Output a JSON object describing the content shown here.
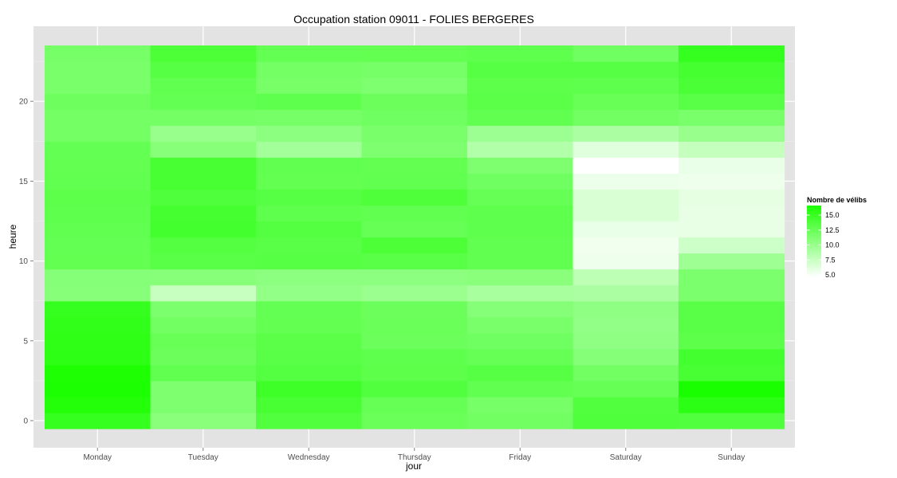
{
  "chart_data": {
    "type": "heatmap",
    "title": "Occupation station 09011 - FOLIES BERGERES",
    "xlabel": "jour",
    "ylabel": "heure",
    "x_categories": [
      "Monday",
      "Tuesday",
      "Wednesday",
      "Thursday",
      "Friday",
      "Saturday",
      "Sunday"
    ],
    "y_ticks": [
      0,
      5,
      10,
      15,
      20
    ],
    "y_range": [
      -0.5,
      23.5
    ],
    "grid": true,
    "legend": {
      "title": "Nombre de vélibs",
      "position": "right",
      "range": [
        4.6,
        16.6
      ],
      "ticks": [
        15.0,
        12.5,
        10.0,
        7.5,
        5.0
      ],
      "tick_labels": [
        "15.0",
        "12.5",
        "10.0",
        "7.5",
        "5.0"
      ],
      "low_color": "#ffffff",
      "high_color": "#1aff00"
    },
    "values": {
      "Monday": [
        15.2,
        16.2,
        16.5,
        16.4,
        15.6,
        15.5,
        15.4,
        15.2,
        10.9,
        11.0,
        12.8,
        12.7,
        12.9,
        13.0,
        13.1,
        12.9,
        12.8,
        12.7,
        11.9,
        11.9,
        12.2,
        11.6,
        11.6,
        11.8
      ],
      "Tuesday": [
        10.8,
        11.4,
        11.4,
        12.9,
        12.3,
        12.5,
        12.0,
        11.5,
        7.6,
        10.9,
        13.3,
        13.6,
        14.5,
        14.3,
        13.8,
        14.2,
        14.2,
        10.9,
        10.0,
        11.9,
        12.7,
        12.9,
        13.4,
        14.0
      ],
      "Wednesday": [
        13.7,
        14.2,
        14.7,
        13.6,
        13.3,
        13.2,
        12.8,
        12.7,
        10.3,
        10.6,
        13.4,
        13.3,
        13.6,
        13.0,
        13.4,
        12.8,
        12.9,
        9.4,
        10.6,
        11.8,
        13.0,
        11.7,
        11.9,
        12.7
      ],
      "Thursday": [
        12.4,
        12.6,
        13.7,
        13.1,
        13.0,
        12.3,
        12.4,
        12.3,
        9.9,
        10.6,
        13.3,
        14.0,
        12.6,
        12.9,
        13.9,
        12.9,
        12.8,
        11.4,
        11.6,
        12.1,
        12.3,
        11.4,
        11.8,
        12.8
      ],
      "Friday": [
        12.0,
        11.8,
        12.9,
        13.4,
        12.6,
        12.1,
        11.6,
        11.0,
        9.2,
        10.8,
        12.9,
        12.9,
        13.0,
        13.0,
        12.6,
        12.1,
        11.4,
        8.7,
        9.8,
        12.9,
        13.2,
        13.1,
        13.4,
        13.0
      ],
      "Saturday": [
        13.8,
        13.7,
        12.6,
        12.0,
        11.0,
        10.5,
        10.3,
        10.5,
        9.0,
        8.1,
        5.5,
        5.4,
        5.7,
        6.6,
        6.6,
        5.6,
        4.6,
        6.2,
        9.0,
        12.0,
        12.5,
        13.0,
        13.4,
        12.1
      ],
      "Sunday": [
        13.7,
        15.7,
        16.6,
        14.2,
        14.4,
        13.1,
        13.3,
        13.3,
        11.5,
        11.5,
        9.7,
        7.2,
        5.8,
        5.8,
        5.9,
        5.5,
        5.7,
        7.7,
        10.0,
        11.6,
        13.3,
        14.1,
        14.3,
        15.2
      ]
    }
  }
}
